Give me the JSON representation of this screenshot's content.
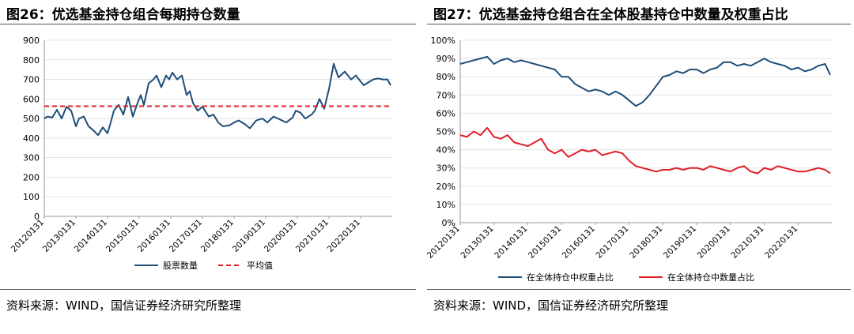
{
  "left": {
    "title": "图26：优选基金持仓组合每期持仓数量",
    "source": "资料来源：WIND，国信证券经济研究所整理"
  },
  "right": {
    "title": "图27：优选基金持仓组合在全体股基持仓中数量及权重占比",
    "source": "资料来源：WIND，国信证券经济研究所整理"
  },
  "colors": {
    "navy": "#1F4E79",
    "red": "#E02027"
  },
  "chart_data": [
    {
      "type": "line",
      "title": "图26：优选基金持仓组合每期持仓数量",
      "ylim": [
        0,
        900
      ],
      "yticks": [
        "0",
        "100",
        "200",
        "300",
        "400",
        "500",
        "600",
        "700",
        "800",
        "900"
      ],
      "xticks": [
        "20120131",
        "20130131",
        "20140131",
        "20150131",
        "20160131",
        "20170131",
        "20180131",
        "20190131",
        "20200131",
        "20210131",
        "20220131"
      ],
      "x_domain": [
        2012.0,
        2023.0
      ],
      "grid": true,
      "legend_position": "bottom",
      "series": [
        {
          "name": "股票数量",
          "color": "#1F4E79",
          "dash": false,
          "x": [
            2012.0,
            2012.1,
            2012.25,
            2012.4,
            2012.55,
            2012.7,
            2012.85,
            2013.0,
            2013.1,
            2013.25,
            2013.4,
            2013.55,
            2013.7,
            2013.85,
            2014.0,
            2014.1,
            2014.2,
            2014.35,
            2014.5,
            2014.65,
            2014.8,
            2014.95,
            2015.05,
            2015.15,
            2015.3,
            2015.45,
            2015.55,
            2015.7,
            2015.85,
            2015.95,
            2016.05,
            2016.2,
            2016.35,
            2016.5,
            2016.6,
            2016.7,
            2016.85,
            2017.0,
            2017.2,
            2017.35,
            2017.5,
            2017.65,
            2017.85,
            2018.0,
            2018.15,
            2018.35,
            2018.5,
            2018.7,
            2018.9,
            2019.05,
            2019.25,
            2019.45,
            2019.65,
            2019.85,
            2019.95,
            2020.1,
            2020.25,
            2020.45,
            2020.55,
            2020.7,
            2020.85,
            2021.0,
            2021.15,
            2021.3,
            2021.5,
            2021.7,
            2021.85,
            2022.0,
            2022.1,
            2022.2,
            2022.3,
            2022.4,
            2022.55,
            2022.7,
            2022.85,
            2022.95
          ],
          "values": [
            500,
            510,
            505,
            545,
            500,
            560,
            540,
            460,
            500,
            510,
            460,
            440,
            415,
            455,
            425,
            480,
            540,
            570,
            520,
            610,
            510,
            580,
            620,
            570,
            680,
            700,
            720,
            660,
            720,
            700,
            735,
            700,
            720,
            620,
            640,
            580,
            540,
            560,
            510,
            520,
            480,
            460,
            465,
            480,
            490,
            470,
            450,
            490,
            500,
            480,
            510,
            495,
            480,
            505,
            540,
            530,
            500,
            520,
            540,
            600,
            550,
            650,
            780,
            710,
            740,
            700,
            720,
            690,
            670,
            680,
            690,
            700,
            705,
            700,
            700,
            670
          ]
        },
        {
          "name": "平均值",
          "color": "#E02027",
          "dash": true,
          "x": [
            2012.0,
            2023.0
          ],
          "values": [
            563,
            563
          ]
        }
      ]
    },
    {
      "type": "line",
      "title": "图27：优选基金持仓组合在全体股基持仓中数量及权重占比",
      "ylim": [
        0,
        100
      ],
      "yticks": [
        "0%",
        "10%",
        "20%",
        "30%",
        "40%",
        "50%",
        "60%",
        "70%",
        "80%",
        "90%",
        "100%"
      ],
      "xticks": [
        "20120131",
        "20130131",
        "20140131",
        "20150131",
        "20160131",
        "20170131",
        "20180131",
        "20190131",
        "20200131",
        "20210131",
        "20220131"
      ],
      "x_domain": [
        2012.0,
        2023.0
      ],
      "grid": true,
      "legend_position": "bottom",
      "series": [
        {
          "name": "在全体持仓中权重占比",
          "color": "#1F4E79",
          "dash": false,
          "x": [
            2012.0,
            2012.2,
            2012.4,
            2012.6,
            2012.8,
            2013.0,
            2013.2,
            2013.4,
            2013.6,
            2013.8,
            2014.0,
            2014.2,
            2014.4,
            2014.6,
            2014.8,
            2015.0,
            2015.2,
            2015.4,
            2015.6,
            2015.8,
            2016.0,
            2016.2,
            2016.4,
            2016.6,
            2016.8,
            2017.0,
            2017.2,
            2017.4,
            2017.6,
            2017.8,
            2018.0,
            2018.2,
            2018.4,
            2018.6,
            2018.8,
            2019.0,
            2019.2,
            2019.4,
            2019.6,
            2019.8,
            2020.0,
            2020.2,
            2020.4,
            2020.6,
            2020.8,
            2021.0,
            2021.2,
            2021.4,
            2021.6,
            2021.8,
            2022.0,
            2022.2,
            2022.4,
            2022.6,
            2022.8,
            2022.95
          ],
          "values": [
            87,
            88,
            89,
            90,
            91,
            87,
            89,
            90,
            88,
            89,
            88,
            87,
            86,
            85,
            84,
            80,
            80,
            76,
            74,
            72,
            73,
            72,
            70,
            72,
            70,
            67,
            64,
            66,
            70,
            75,
            80,
            81,
            83,
            82,
            84,
            84,
            82,
            84,
            85,
            88,
            88,
            86,
            87,
            86,
            88,
            90,
            88,
            87,
            86,
            84,
            85,
            83,
            84,
            86,
            87,
            81
          ]
        },
        {
          "name": "在全体持仓中数量占比",
          "color": "#E02027",
          "dash": false,
          "x": [
            2012.0,
            2012.2,
            2012.4,
            2012.6,
            2012.8,
            2013.0,
            2013.2,
            2013.4,
            2013.6,
            2013.8,
            2014.0,
            2014.2,
            2014.4,
            2014.6,
            2014.8,
            2015.0,
            2015.2,
            2015.4,
            2015.6,
            2015.8,
            2016.0,
            2016.2,
            2016.4,
            2016.6,
            2016.8,
            2017.0,
            2017.2,
            2017.4,
            2017.6,
            2017.8,
            2018.0,
            2018.2,
            2018.4,
            2018.6,
            2018.8,
            2019.0,
            2019.2,
            2019.4,
            2019.6,
            2019.8,
            2020.0,
            2020.2,
            2020.4,
            2020.6,
            2020.8,
            2021.0,
            2021.2,
            2021.4,
            2021.6,
            2021.8,
            2022.0,
            2022.2,
            2022.4,
            2022.6,
            2022.8,
            2022.95
          ],
          "values": [
            48,
            47,
            50,
            48,
            52,
            47,
            46,
            48,
            44,
            43,
            42,
            44,
            46,
            40,
            38,
            40,
            36,
            38,
            40,
            39,
            40,
            37,
            38,
            39,
            38,
            34,
            31,
            30,
            29,
            28,
            29,
            29,
            30,
            29,
            30,
            30,
            29,
            31,
            30,
            29,
            28,
            30,
            31,
            28,
            27,
            30,
            29,
            31,
            30,
            29,
            28,
            28,
            29,
            30,
            29,
            27
          ]
        }
      ]
    }
  ]
}
